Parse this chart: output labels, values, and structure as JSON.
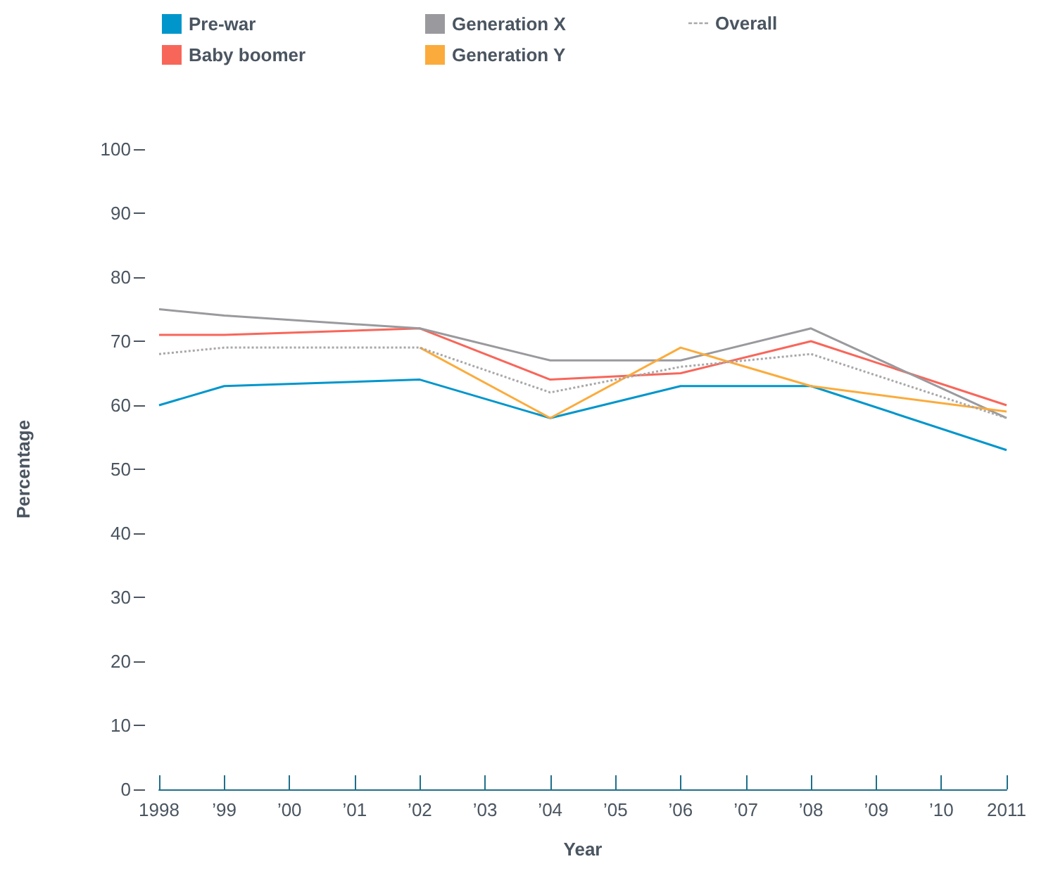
{
  "chart_data": {
    "type": "line",
    "xlabel": "Year",
    "ylabel": "Percentage",
    "categories": [
      "1998",
      "’99",
      "’00",
      "’01",
      "’02",
      "’03",
      "’04",
      "’05",
      "’06",
      "’07",
      "’08",
      "’09",
      "’10",
      "2011"
    ],
    "series": [
      {
        "name": "Pre-war",
        "color": "#0096cc",
        "values": [
          60,
          63,
          null,
          null,
          64,
          null,
          58,
          null,
          63,
          null,
          63,
          null,
          null,
          53
        ]
      },
      {
        "name": "Baby boomer",
        "color": "#f8665a",
        "values": [
          71,
          71,
          null,
          null,
          72,
          null,
          64,
          null,
          65,
          null,
          70,
          null,
          null,
          60
        ]
      },
      {
        "name": "Generation X",
        "color": "#9a9a9e",
        "values": [
          75,
          74,
          null,
          null,
          72,
          null,
          67,
          null,
          67,
          null,
          72,
          null,
          null,
          58
        ]
      },
      {
        "name": "Generation Y",
        "color": "#fbab3c",
        "values": [
          null,
          null,
          null,
          null,
          69,
          null,
          58,
          null,
          69,
          null,
          63,
          null,
          null,
          59
        ]
      },
      {
        "name": "Overall",
        "color": "#a8a8a8",
        "line_style": "dotted",
        "values": [
          68,
          69,
          null,
          null,
          69,
          null,
          62,
          null,
          66,
          null,
          68,
          null,
          null,
          58
        ]
      }
    ],
    "ylim": [
      0,
      100
    ],
    "yticks": [
      0,
      10,
      20,
      30,
      40,
      50,
      60,
      70,
      80,
      90,
      100
    ],
    "grid": false,
    "legend": "top left",
    "marker": "none",
    "line_style": "solid"
  }
}
